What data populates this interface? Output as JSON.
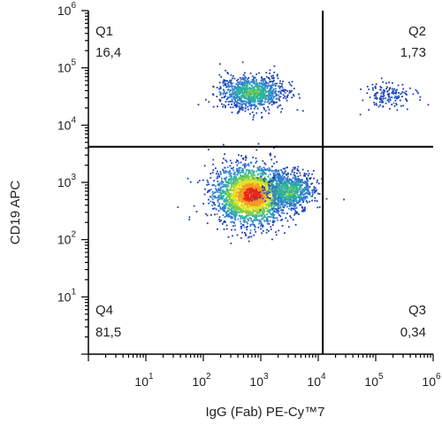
{
  "chart_data": {
    "type": "scatter",
    "subtype": "flow-cytometry-density-dot-plot",
    "xlabel": "IgG (Fab) PE-Cy™7",
    "ylabel": "CD19 APC",
    "x_scale": "log",
    "y_scale": "log",
    "xlim": [
      1,
      1000000
    ],
    "ylim": [
      1,
      1000000
    ],
    "x_ticks": [
      {
        "base": "10",
        "exp": "1",
        "value": 10
      },
      {
        "base": "10",
        "exp": "2",
        "value": 100
      },
      {
        "base": "10",
        "exp": "3",
        "value": 1000
      },
      {
        "base": "10",
        "exp": "4",
        "value": 10000
      },
      {
        "base": "10",
        "exp": "5",
        "value": 100000
      },
      {
        "base": "10",
        "exp": "6",
        "value": 1000000
      }
    ],
    "y_ticks": [
      {
        "base": "10",
        "exp": "1",
        "value": 10
      },
      {
        "base": "10",
        "exp": "2",
        "value": 100
      },
      {
        "base": "10",
        "exp": "3",
        "value": 1000
      },
      {
        "base": "10",
        "exp": "4",
        "value": 10000
      },
      {
        "base": "10",
        "exp": "5",
        "value": 100000
      },
      {
        "base": "10",
        "exp": "6",
        "value": 1000000
      }
    ],
    "gate": {
      "x": 12000,
      "y": 4200
    },
    "quadrants": [
      {
        "name": "Q1",
        "value": "16,4",
        "position": "top-left"
      },
      {
        "name": "Q2",
        "value": "1,73",
        "position": "top-right"
      },
      {
        "name": "Q3",
        "value": "0,34",
        "position": "bottom-right"
      },
      {
        "name": "Q4",
        "value": "81,5",
        "position": "bottom-left"
      }
    ],
    "populations": [
      {
        "label": "",
        "x": 700,
        "y": 600,
        "spread_x": 0.32,
        "spread_y": 0.25,
        "count": 2600,
        "density": "high"
      },
      {
        "label": "",
        "x": 3200,
        "y": 700,
        "spread_x": 0.22,
        "spread_y": 0.16,
        "count": 700,
        "density": "medium"
      },
      {
        "label": "",
        "x": 700,
        "y": 37000,
        "spread_x": 0.28,
        "spread_y": 0.14,
        "count": 1000,
        "density": "medium"
      },
      {
        "label": "",
        "x": 180000,
        "y": 33000,
        "spread_x": 0.23,
        "spread_y": 0.12,
        "count": 150,
        "density": "low"
      }
    ],
    "density_colors": [
      "#1f3fb4",
      "#2f7fd0",
      "#2db39a",
      "#7fcf3a",
      "#e6e02a",
      "#f29a1e",
      "#e8251a"
    ],
    "grid": false,
    "legend": "none"
  }
}
